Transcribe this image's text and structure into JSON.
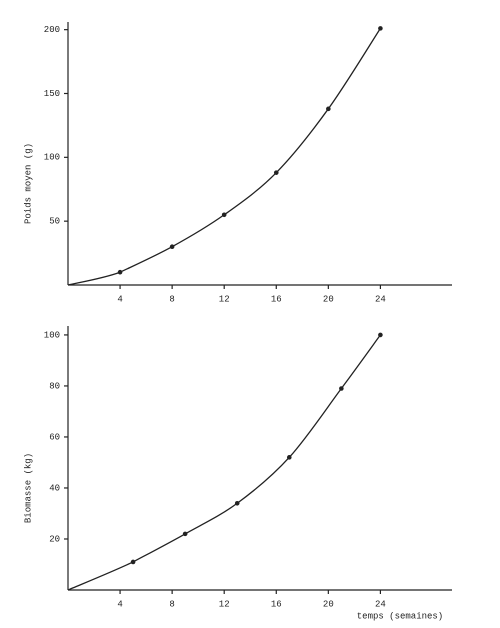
{
  "chart_data": [
    {
      "type": "line",
      "y_label": "Poids moyen (g)",
      "x": [
        4,
        8,
        12,
        16,
        20,
        24
      ],
      "series": [
        {
          "color": "#222222",
          "values": [
            10,
            30,
            55,
            88,
            138,
            201
          ]
        }
      ],
      "xlim": [
        0,
        29.5
      ],
      "ylim": [
        0,
        206
      ],
      "xticks": [
        4,
        8,
        12,
        16,
        20,
        24
      ],
      "yticks": [
        50,
        100,
        150,
        200
      ]
    },
    {
      "type": "line",
      "y_label": "Biomasse (kg)",
      "x_label": "temps (semaines)",
      "x": [
        5,
        9,
        13,
        17,
        21,
        24
      ],
      "series": [
        {
          "color": "#222222",
          "values": [
            11,
            22,
            34,
            52,
            79,
            100
          ]
        }
      ],
      "xlim": [
        0,
        29.5
      ],
      "ylim": [
        0,
        103.5
      ],
      "xticks": [
        4,
        8,
        12,
        16,
        20,
        24
      ],
      "yticks": [
        20,
        40,
        60,
        80,
        100
      ]
    }
  ]
}
